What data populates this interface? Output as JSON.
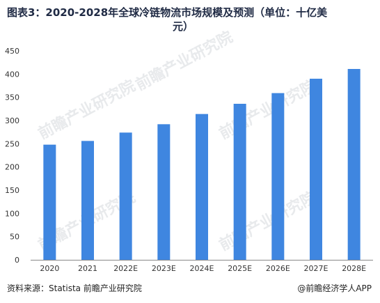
{
  "title": {
    "line1": "图表3：2020-2028年全球冷链物流市场规模及预测（单位：十亿美",
    "line2": "元）"
  },
  "footer": {
    "source": "资料来源：Statista 前瞻产业研究院",
    "brand": "@前瞻经济学人APP"
  },
  "watermark": "前瞻产业研究院",
  "colors": {
    "bar": "#3f86e0",
    "axis": "#888888"
  },
  "chart_data": {
    "type": "bar",
    "categories": [
      "2020",
      "2021",
      "2022E",
      "2023E",
      "2024E",
      "2025E",
      "2026E",
      "2027E",
      "2028E"
    ],
    "values": [
      248,
      256,
      274,
      292,
      314,
      336,
      359,
      390,
      411
    ],
    "ylim": [
      0,
      450
    ],
    "yticks": [
      0,
      50,
      100,
      150,
      200,
      250,
      300,
      350,
      400,
      450
    ],
    "grid": false
  }
}
